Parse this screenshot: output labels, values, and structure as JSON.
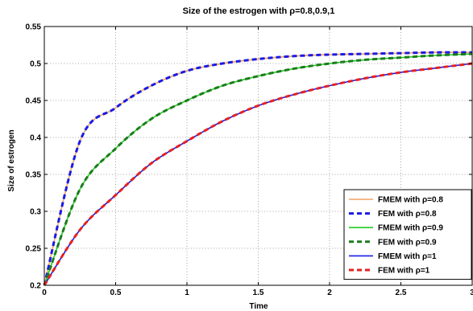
{
  "chart_data": {
    "type": "line",
    "title": "Size of the estrogen with ρ=0.8,0.9,1",
    "xlabel": "Time",
    "ylabel": "Size of estrogen",
    "xlim": [
      0,
      3
    ],
    "ylim": [
      0.2,
      0.55
    ],
    "xticks": [
      "0",
      "0.5",
      "1",
      "1.5",
      "2",
      "2.5",
      "3"
    ],
    "yticks": [
      "0.2",
      "0.25",
      "0.3",
      "0.35",
      "0.4",
      "0.45",
      "0.5",
      "0.55"
    ],
    "grid": true,
    "legend_position": "bottom-right",
    "x": [
      0,
      0.25,
      0.5,
      0.75,
      1,
      1.25,
      1.5,
      1.75,
      2,
      2.25,
      2.5,
      2.75,
      3
    ],
    "series": [
      {
        "name": "FMEM with ρ=0.8",
        "color": "#f4a460",
        "style": "solid",
        "values": [
          0.2,
          0.395,
          0.44,
          0.47,
          0.49,
          0.5,
          0.506,
          0.51,
          0.512,
          0.513,
          0.514,
          0.515,
          0.515
        ]
      },
      {
        "name": "FEM with ρ=0.8",
        "color": "#1a1ae6",
        "style": "dashed",
        "values": [
          0.2,
          0.395,
          0.44,
          0.47,
          0.49,
          0.5,
          0.506,
          0.51,
          0.512,
          0.513,
          0.514,
          0.515,
          0.515
        ]
      },
      {
        "name": "FMEM with ρ=0.9",
        "color": "#22cc22",
        "style": "solid",
        "values": [
          0.2,
          0.33,
          0.385,
          0.425,
          0.45,
          0.47,
          0.483,
          0.493,
          0.5,
          0.505,
          0.508,
          0.511,
          0.513
        ]
      },
      {
        "name": "FEM with ρ=0.9",
        "color": "#1f7a1f",
        "style": "dashed",
        "values": [
          0.2,
          0.33,
          0.385,
          0.425,
          0.45,
          0.47,
          0.483,
          0.493,
          0.5,
          0.505,
          0.508,
          0.511,
          0.513
        ]
      },
      {
        "name": "FMEM with ρ=1",
        "color": "#1a1ae6",
        "style": "solid",
        "values": [
          0.2,
          0.275,
          0.322,
          0.365,
          0.395,
          0.422,
          0.443,
          0.458,
          0.47,
          0.48,
          0.488,
          0.494,
          0.5
        ]
      },
      {
        "name": "FEM with ρ=1",
        "color": "#e62020",
        "style": "dashed",
        "values": [
          0.2,
          0.275,
          0.322,
          0.365,
          0.395,
          0.422,
          0.443,
          0.458,
          0.47,
          0.48,
          0.488,
          0.494,
          0.5
        ]
      }
    ]
  }
}
